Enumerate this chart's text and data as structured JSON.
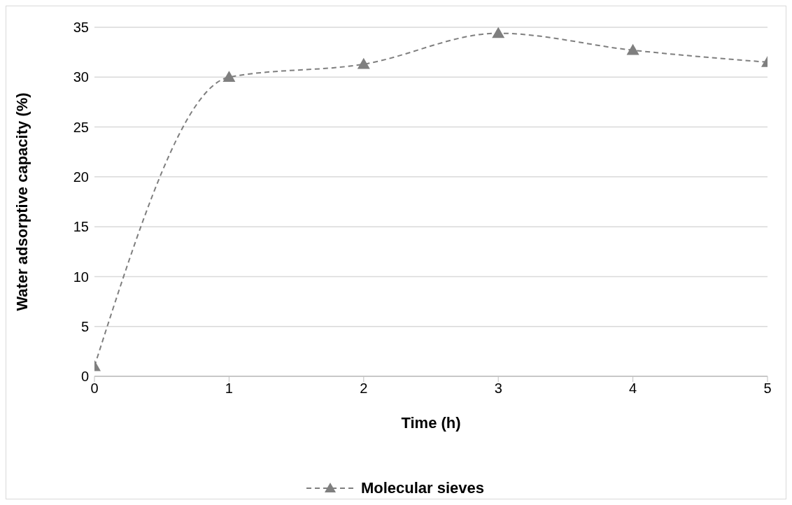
{
  "chart_data": {
    "type": "line",
    "xlabel": "Time (h)",
    "ylabel": "Water adsorptive capacity (%)",
    "x": [
      0,
      1,
      2,
      3,
      4,
      5
    ],
    "series": [
      {
        "name": "Molecular sieves",
        "color": "#7f7f7f",
        "values": [
          1,
          30,
          31.3,
          34.4,
          32.7,
          31.5
        ]
      }
    ],
    "xlim": [
      0,
      5
    ],
    "xticks": [
      0,
      1,
      2,
      3,
      4,
      5
    ],
    "ylim": [
      0,
      35
    ],
    "yticks": [
      0,
      5,
      10,
      15,
      20,
      25,
      30,
      35
    ],
    "grid": "y",
    "legend": "bottom",
    "marker": "triangle",
    "line_style": "dashed"
  }
}
